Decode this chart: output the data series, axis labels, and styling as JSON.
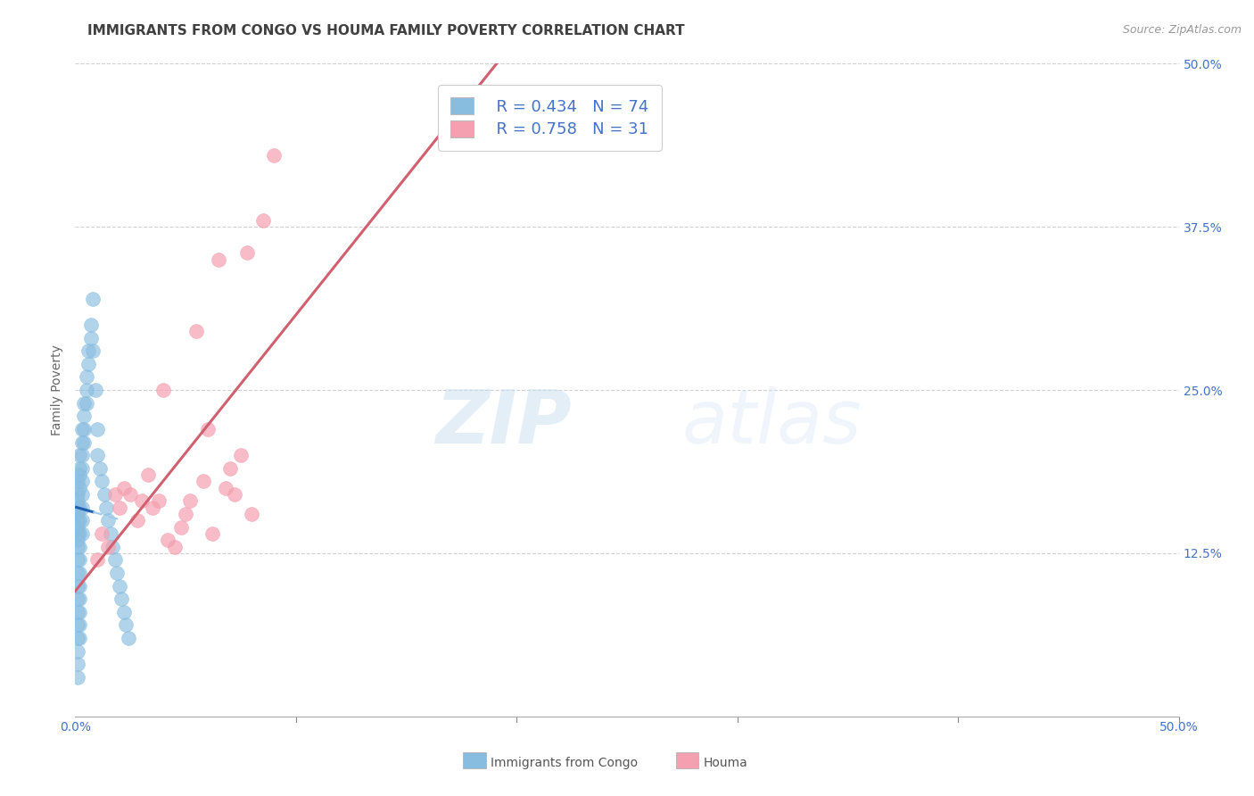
{
  "title": "IMMIGRANTS FROM CONGO VS HOUMA FAMILY POVERTY CORRELATION CHART",
  "source": "Source: ZipAtlas.com",
  "xlabel_blue": "Immigrants from Congo",
  "xlabel_pink": "Houma",
  "ylabel": "Family Poverty",
  "xlim": [
    0.0,
    0.5
  ],
  "ylim": [
    0.0,
    0.5
  ],
  "watermark": "ZIPatlas",
  "legend_R_blue": "R = 0.434",
  "legend_N_blue": "N = 74",
  "legend_R_pink": "R = 0.758",
  "legend_N_pink": "N = 31",
  "blue_scatter_x": [
    0.001,
    0.001,
    0.001,
    0.001,
    0.001,
    0.001,
    0.001,
    0.001,
    0.001,
    0.001,
    0.001,
    0.001,
    0.001,
    0.001,
    0.001,
    0.001,
    0.001,
    0.001,
    0.001,
    0.001,
    0.002,
    0.002,
    0.002,
    0.002,
    0.002,
    0.002,
    0.002,
    0.002,
    0.002,
    0.002,
    0.002,
    0.002,
    0.002,
    0.002,
    0.002,
    0.003,
    0.003,
    0.003,
    0.003,
    0.003,
    0.003,
    0.003,
    0.003,
    0.003,
    0.004,
    0.004,
    0.004,
    0.004,
    0.005,
    0.005,
    0.005,
    0.006,
    0.006,
    0.007,
    0.007,
    0.008,
    0.008,
    0.009,
    0.01,
    0.01,
    0.011,
    0.012,
    0.013,
    0.014,
    0.015,
    0.016,
    0.017,
    0.018,
    0.019,
    0.02,
    0.021,
    0.022,
    0.023,
    0.024
  ],
  "blue_scatter_y": [
    0.16,
    0.15,
    0.14,
    0.13,
    0.12,
    0.11,
    0.1,
    0.09,
    0.08,
    0.07,
    0.06,
    0.05,
    0.04,
    0.03,
    0.18,
    0.17,
    0.165,
    0.155,
    0.145,
    0.135,
    0.2,
    0.19,
    0.185,
    0.175,
    0.16,
    0.15,
    0.14,
    0.13,
    0.12,
    0.11,
    0.1,
    0.09,
    0.08,
    0.07,
    0.06,
    0.22,
    0.21,
    0.2,
    0.19,
    0.18,
    0.17,
    0.16,
    0.15,
    0.14,
    0.24,
    0.23,
    0.22,
    0.21,
    0.26,
    0.25,
    0.24,
    0.28,
    0.27,
    0.3,
    0.29,
    0.32,
    0.28,
    0.25,
    0.22,
    0.2,
    0.19,
    0.18,
    0.17,
    0.16,
    0.15,
    0.14,
    0.13,
    0.12,
    0.11,
    0.1,
    0.09,
    0.08,
    0.07,
    0.06
  ],
  "pink_scatter_x": [
    0.01,
    0.012,
    0.015,
    0.018,
    0.02,
    0.022,
    0.025,
    0.028,
    0.03,
    0.033,
    0.035,
    0.038,
    0.04,
    0.042,
    0.045,
    0.048,
    0.05,
    0.052,
    0.055,
    0.058,
    0.06,
    0.062,
    0.065,
    0.068,
    0.07,
    0.072,
    0.075,
    0.078,
    0.08,
    0.085,
    0.09
  ],
  "pink_scatter_y": [
    0.12,
    0.14,
    0.13,
    0.17,
    0.16,
    0.175,
    0.17,
    0.15,
    0.165,
    0.185,
    0.16,
    0.165,
    0.25,
    0.135,
    0.13,
    0.145,
    0.155,
    0.165,
    0.295,
    0.18,
    0.22,
    0.14,
    0.35,
    0.175,
    0.19,
    0.17,
    0.2,
    0.355,
    0.155,
    0.38,
    0.43
  ],
  "blue_color": "#89bde0",
  "pink_color": "#f4a0b0",
  "blue_line_color": "#2060b0",
  "pink_line_color": "#d06070",
  "blue_dash_color": "#a0c8e8",
  "grid_color": "#cccccc",
  "background_color": "#ffffff",
  "tick_color": "#4472c4",
  "title_color": "#404040",
  "title_fontsize": 11,
  "axis_label_fontsize": 10,
  "tick_fontsize": 10,
  "legend_fontsize": 13
}
